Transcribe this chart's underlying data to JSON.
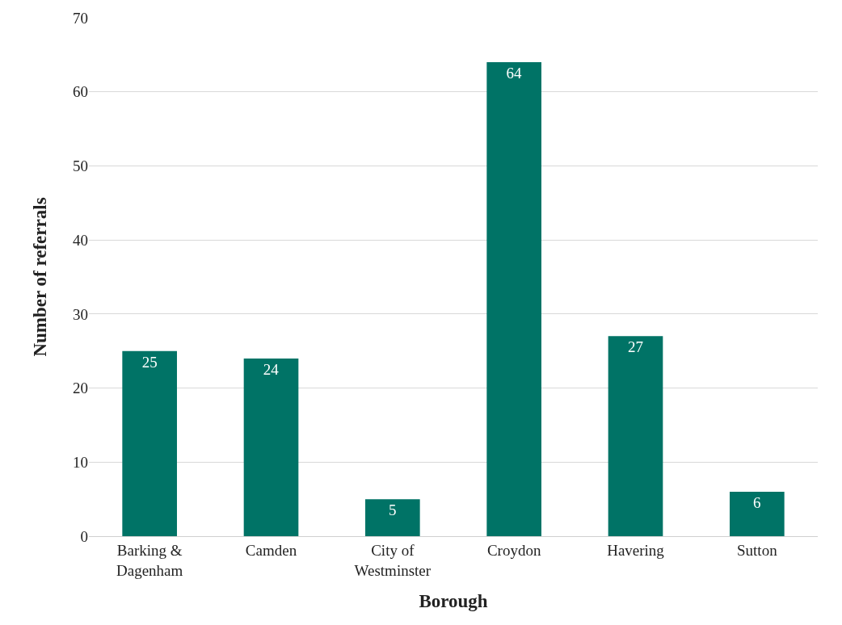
{
  "chart_data": {
    "type": "bar",
    "xlabel": "Borough",
    "ylabel": "Number of referrals",
    "categories": [
      "Barking & Dagenham",
      "Camden",
      "City of Westminster",
      "Croydon",
      "Havering",
      "Sutton"
    ],
    "values": [
      25,
      24,
      5,
      64,
      27,
      6
    ],
    "color": "#007366",
    "ylim": [
      0,
      70
    ],
    "yticks": [
      0,
      10,
      20,
      30,
      40,
      50,
      60,
      70
    ],
    "grid": "y",
    "data_labels": true
  }
}
